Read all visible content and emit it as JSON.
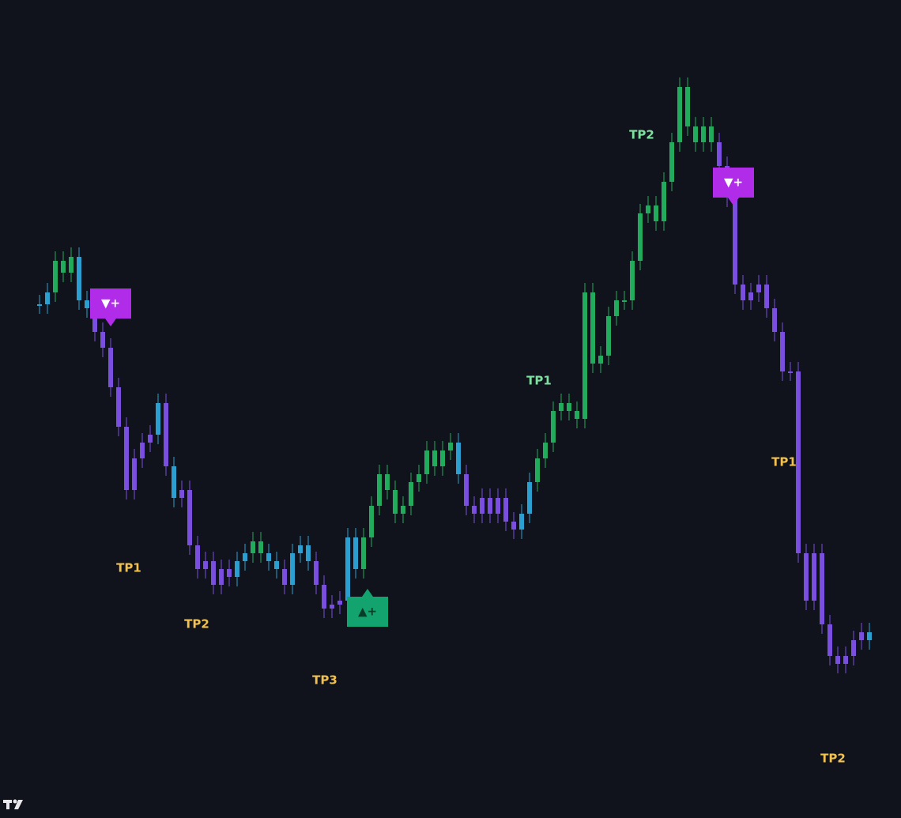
{
  "chart_data": {
    "type": "candles",
    "xlim": [
      -5,
      109
    ],
    "ylim": [
      0,
      103.5
    ],
    "up_color": "#22ab5c",
    "down_color": "#7a4fe0",
    "flat_color": "#2b9fd0",
    "values": [
      65,
      66.5,
      70.5,
      69,
      71,
      65.5,
      64.5,
      61.5,
      59.5,
      54.5,
      49.5,
      41.5,
      45.5,
      47.5,
      48.5,
      52.5,
      44.5,
      40.5,
      41.5,
      34.5,
      31.5,
      32.5,
      29.5,
      31.5,
      30.5,
      32.5,
      33.5,
      35,
      33.5,
      32.5,
      31.5,
      29.5,
      33.5,
      34.5,
      32.5,
      29.5,
      26.5,
      27,
      27.5,
      35.5,
      31.5,
      35.5,
      39.5,
      43.5,
      41.5,
      38.5,
      39.5,
      42.5,
      43.5,
      46.5,
      44.5,
      46.5,
      47.5,
      43.5,
      39.5,
      38.5,
      40.5,
      38.5,
      40.5,
      37.5,
      36.5,
      38.5,
      42.5,
      45.5,
      47.5,
      51.5,
      52.5,
      51.5,
      50.5,
      66.5,
      57.5,
      58.5,
      63.5,
      65.5,
      65.5,
      70.5,
      76.5,
      77.5,
      75.5,
      80.5,
      85.5,
      92.5,
      87.5,
      85.5,
      87.5,
      85.5,
      82.5,
      78.5,
      67.5,
      65.5,
      66.5,
      67.5,
      64.5,
      61.5,
      56.5,
      56.5,
      33.5,
      27.5,
      33.5,
      24.5,
      20.5,
      19.5,
      20.5,
      22.5,
      23.5,
      22.5
    ],
    "annotations": [
      {
        "text": "TP1",
        "color": "#f2c14e",
        "x": 11.3,
        "value": 31.6
      },
      {
        "text": "TP2",
        "color": "#f2c14e",
        "x": 19.9,
        "value": 24.5
      },
      {
        "text": "TP3",
        "color": "#f2c14e",
        "x": 36.1,
        "value": 17.4
      },
      {
        "text": "TP1",
        "color": "#7ee0a0",
        "x": 63.2,
        "value": 55.3
      },
      {
        "text": "TP2",
        "color": "#7ee0a0",
        "x": 76.2,
        "value": 86.4
      },
      {
        "text": "TP1",
        "color": "#f2c14e",
        "x": 94.2,
        "value": 45
      },
      {
        "text": "TP2",
        "color": "#f2c14e",
        "x": 100.4,
        "value": 7.5
      }
    ],
    "signals": [
      {
        "label": "▼+",
        "direction": "sell",
        "color": "#b12ce8",
        "x": 9,
        "value": 62.2
      },
      {
        "label": "▲+",
        "direction": "buy",
        "color": "#13a36e",
        "x": 41.5,
        "value": 29
      },
      {
        "label": "▼+",
        "direction": "sell",
        "color": "#b12ce8",
        "x": 87.8,
        "value": 77.5
      }
    ]
  }
}
